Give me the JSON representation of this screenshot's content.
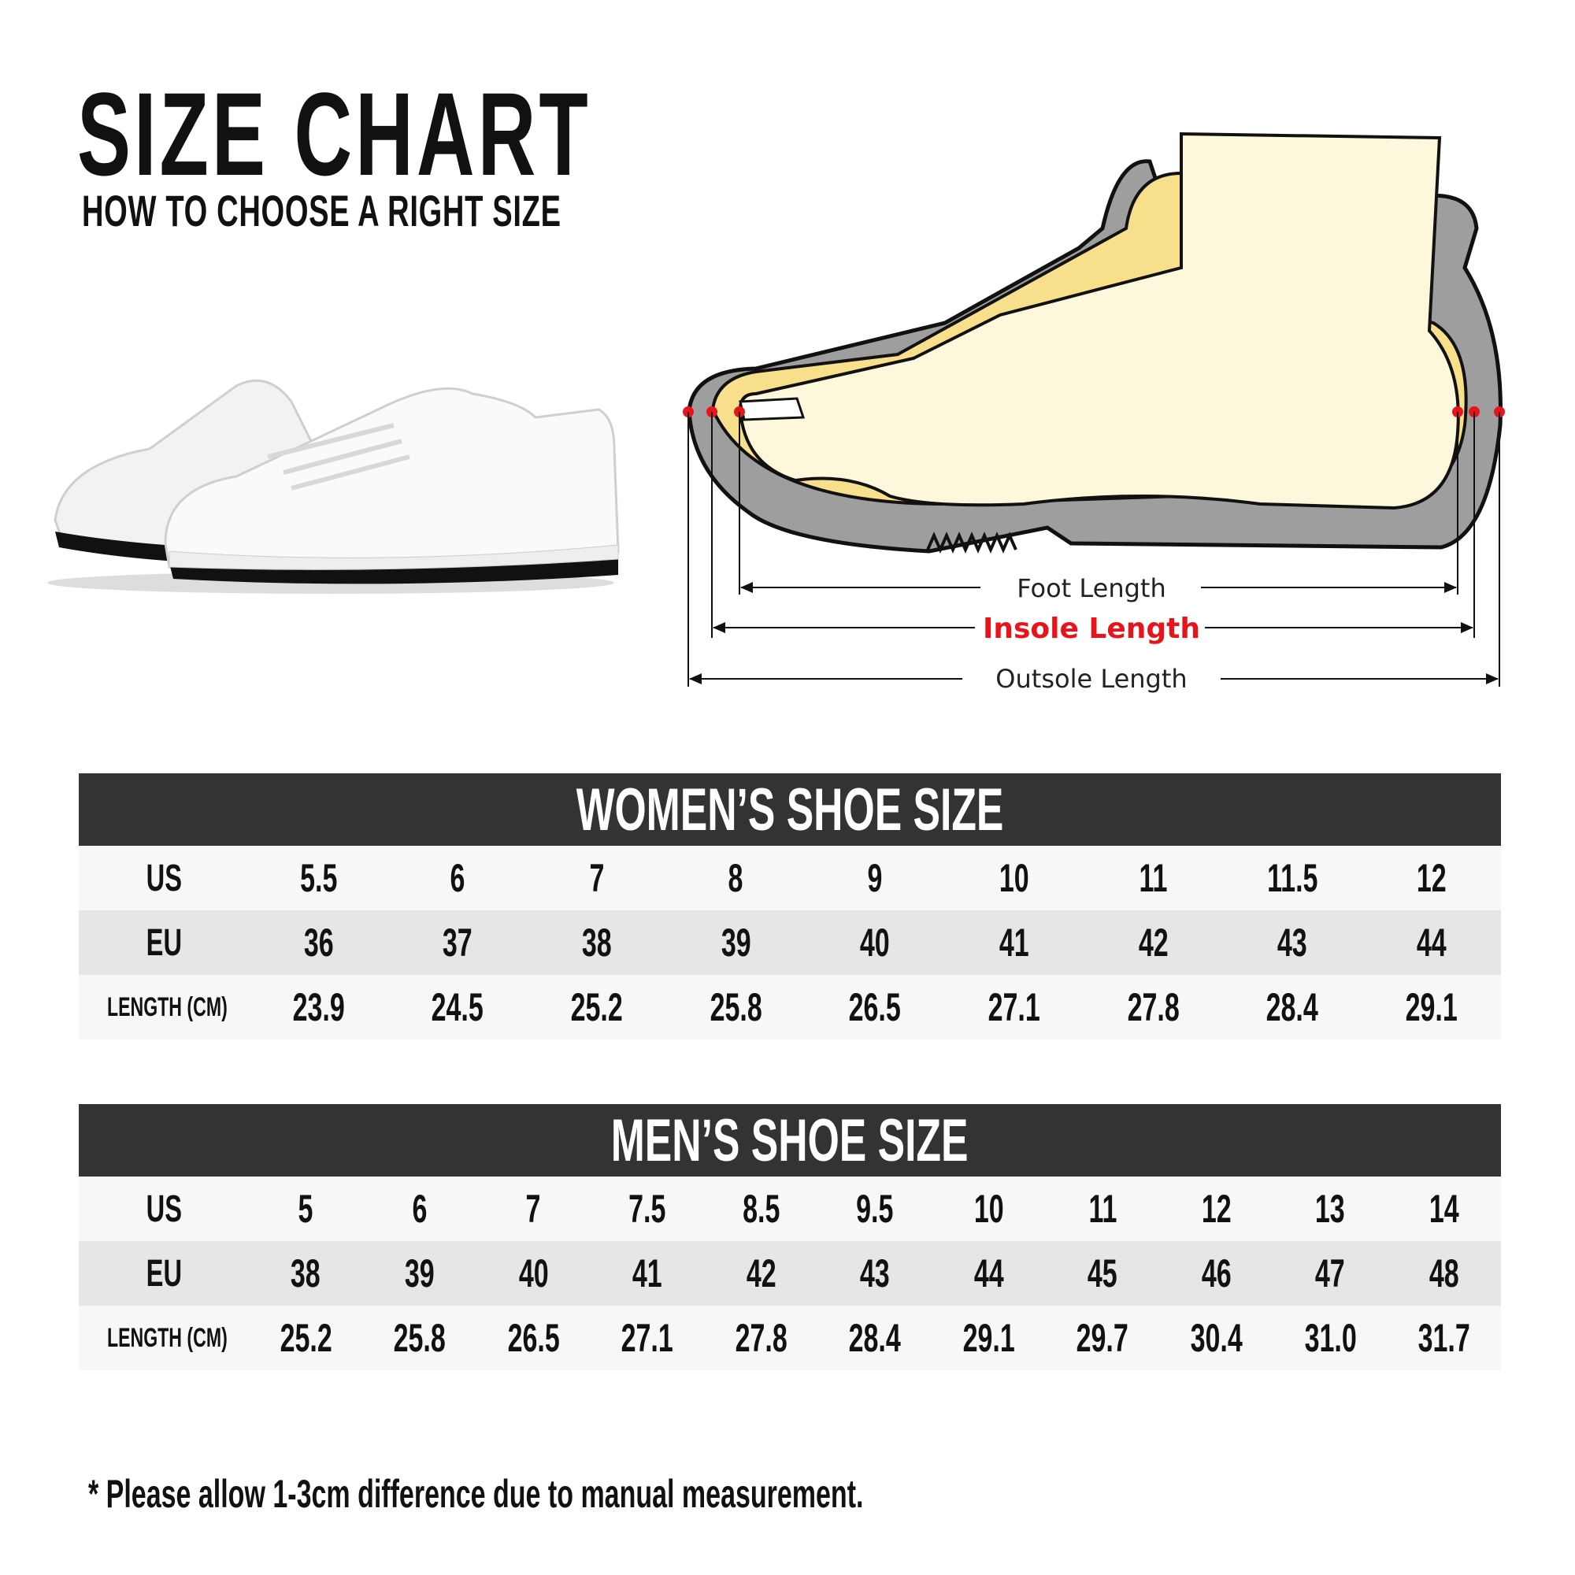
{
  "header": {
    "title": "SIZE CHART",
    "subtitle": "HOW TO CHOOSE A RIGHT SIZE"
  },
  "diagram": {
    "labels": {
      "foot_length": "Foot Length",
      "insole_length": "Insole Length",
      "outsole_length": "Outsole Length"
    },
    "colors": {
      "insole_highlight": "#e8141b",
      "sole": "#9e9e9e",
      "foot": "#fdf7dc",
      "insole": "#f8df8c"
    }
  },
  "women": {
    "title": "WOMEN’S SHOE SIZE",
    "row_labels": [
      "US",
      "EU",
      "LENGTH (CM)"
    ],
    "us": [
      "5.5",
      "6",
      "7",
      "8",
      "9",
      "10",
      "11",
      "11.5",
      "12"
    ],
    "eu": [
      "36",
      "37",
      "38",
      "39",
      "40",
      "41",
      "42",
      "43",
      "44"
    ],
    "length_cm": [
      "23.9",
      "24.5",
      "25.2",
      "25.8",
      "26.5",
      "27.1",
      "27.8",
      "28.4",
      "29.1"
    ]
  },
  "men": {
    "title": "MEN’S SHOE SIZE",
    "row_labels": [
      "US",
      "EU",
      "LENGTH (CM)"
    ],
    "us": [
      "5",
      "6",
      "7",
      "7.5",
      "8.5",
      "9.5",
      "10",
      "11",
      "12",
      "13",
      "14"
    ],
    "eu": [
      "38",
      "39",
      "40",
      "41",
      "42",
      "43",
      "44",
      "45",
      "46",
      "47",
      "48"
    ],
    "length_cm": [
      "25.2",
      "25.8",
      "26.5",
      "27.1",
      "27.8",
      "28.4",
      "29.1",
      "29.7",
      "30.4",
      "31.0",
      "31.7"
    ]
  },
  "footer": {
    "note": "* Please allow 1-3cm difference due to manual measurement."
  }
}
